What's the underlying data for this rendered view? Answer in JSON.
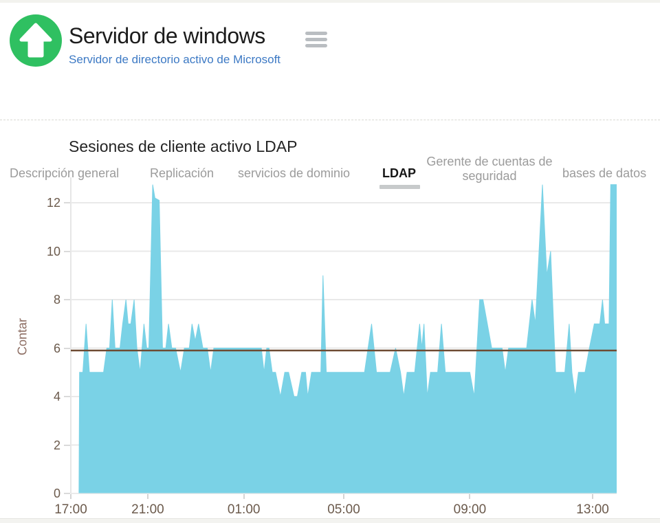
{
  "header": {
    "title": "Servidor de windows",
    "subtitle": "Servidor de directorio activo de Microsoft",
    "status_icon": "up-arrow-circle-icon",
    "status_color": "#2fc061",
    "menu_icon": "hamburger-menu-icon"
  },
  "tabs": {
    "items": [
      {
        "label": "Descripción general",
        "active": false
      },
      {
        "label": "Replicación",
        "active": false
      },
      {
        "label": "servicios de dominio",
        "active": false
      },
      {
        "label": "LDAP",
        "active": true
      },
      {
        "label": "Gerente de cuentas de seguridad",
        "active": false
      },
      {
        "label": "bases de datos",
        "active": false
      }
    ]
  },
  "chart_data": {
    "type": "area",
    "title": "Sesiones de cliente activo LDAP",
    "xlabel": "",
    "ylabel": "Contar",
    "ylim": [
      0,
      13
    ],
    "grid": true,
    "legend": "none",
    "area_color": "#7AD2E6",
    "grid_color": "#e9e9e9",
    "threshold_line": {
      "value": 5.9,
      "color": "#6E4B33"
    },
    "yticks": [
      0,
      2,
      4,
      6,
      8,
      10,
      12
    ],
    "xticks": [
      {
        "label": "17:00",
        "pos": 0.0
      },
      {
        "label": "21:00",
        "pos": 0.141
      },
      {
        "label": "01:00",
        "pos": 0.317
      },
      {
        "label": "05:00",
        "pos": 0.5
      },
      {
        "label": "09:00",
        "pos": 0.731
      },
      {
        "label": "13:00",
        "pos": 0.956
      }
    ],
    "series": [
      {
        "name": "Sesiones de cliente activo LDAP",
        "points": [
          [
            0.015,
            0
          ],
          [
            0.016,
            5
          ],
          [
            0.022,
            5
          ],
          [
            0.028,
            7
          ],
          [
            0.034,
            5
          ],
          [
            0.042,
            5
          ],
          [
            0.055,
            5
          ],
          [
            0.06,
            5
          ],
          [
            0.066,
            6
          ],
          [
            0.071,
            6
          ],
          [
            0.076,
            8
          ],
          [
            0.081,
            6
          ],
          [
            0.09,
            6
          ],
          [
            0.095,
            7
          ],
          [
            0.101,
            8
          ],
          [
            0.105,
            7
          ],
          [
            0.11,
            7
          ],
          [
            0.116,
            8
          ],
          [
            0.121,
            6
          ],
          [
            0.127,
            5
          ],
          [
            0.134,
            7
          ],
          [
            0.139,
            6
          ],
          [
            0.143,
            6
          ],
          [
            0.15,
            12.75
          ],
          [
            0.154,
            12.2
          ],
          [
            0.162,
            12.1
          ],
          [
            0.168,
            6
          ],
          [
            0.174,
            6
          ],
          [
            0.179,
            7
          ],
          [
            0.185,
            6
          ],
          [
            0.192,
            6
          ],
          [
            0.201,
            5
          ],
          [
            0.208,
            6
          ],
          [
            0.217,
            6
          ],
          [
            0.222,
            7
          ],
          [
            0.228,
            6.3
          ],
          [
            0.234,
            7
          ],
          [
            0.242,
            6
          ],
          [
            0.25,
            6
          ],
          [
            0.256,
            5
          ],
          [
            0.262,
            6
          ],
          [
            0.305,
            6
          ],
          [
            0.349,
            6
          ],
          [
            0.354,
            5
          ],
          [
            0.359,
            6
          ],
          [
            0.363,
            6
          ],
          [
            0.369,
            5
          ],
          [
            0.375,
            5
          ],
          [
            0.384,
            4
          ],
          [
            0.392,
            5
          ],
          [
            0.399,
            5
          ],
          [
            0.409,
            4
          ],
          [
            0.415,
            4
          ],
          [
            0.423,
            5
          ],
          [
            0.43,
            5
          ],
          [
            0.434,
            4
          ],
          [
            0.441,
            5
          ],
          [
            0.452,
            5
          ],
          [
            0.458,
            5
          ],
          [
            0.462,
            9
          ],
          [
            0.468,
            5
          ],
          [
            0.48,
            5
          ],
          [
            0.538,
            5
          ],
          [
            0.551,
            7
          ],
          [
            0.56,
            5
          ],
          [
            0.585,
            5
          ],
          [
            0.595,
            6
          ],
          [
            0.604,
            5
          ],
          [
            0.61,
            4
          ],
          [
            0.616,
            5
          ],
          [
            0.63,
            5
          ],
          [
            0.639,
            7
          ],
          [
            0.643,
            6
          ],
          [
            0.647,
            7
          ],
          [
            0.653,
            4
          ],
          [
            0.659,
            5
          ],
          [
            0.672,
            5
          ],
          [
            0.679,
            7
          ],
          [
            0.686,
            5
          ],
          [
            0.694,
            5
          ],
          [
            0.731,
            5
          ],
          [
            0.739,
            4
          ],
          [
            0.749,
            8
          ],
          [
            0.755,
            8
          ],
          [
            0.771,
            6
          ],
          [
            0.79,
            6
          ],
          [
            0.796,
            5
          ],
          [
            0.802,
            6
          ],
          [
            0.835,
            6
          ],
          [
            0.845,
            8
          ],
          [
            0.851,
            7
          ],
          [
            0.864,
            12.75
          ],
          [
            0.872,
            9
          ],
          [
            0.879,
            10
          ],
          [
            0.888,
            5
          ],
          [
            0.905,
            5
          ],
          [
            0.913,
            7
          ],
          [
            0.918,
            5
          ],
          [
            0.924,
            4
          ],
          [
            0.93,
            5
          ],
          [
            0.942,
            5
          ],
          [
            0.95,
            6
          ],
          [
            0.959,
            7
          ],
          [
            0.969,
            7
          ],
          [
            0.974,
            8
          ],
          [
            0.978,
            7
          ],
          [
            0.986,
            7
          ],
          [
            0.989,
            12.75
          ],
          [
            1.0,
            12.75
          ]
        ]
      }
    ]
  }
}
